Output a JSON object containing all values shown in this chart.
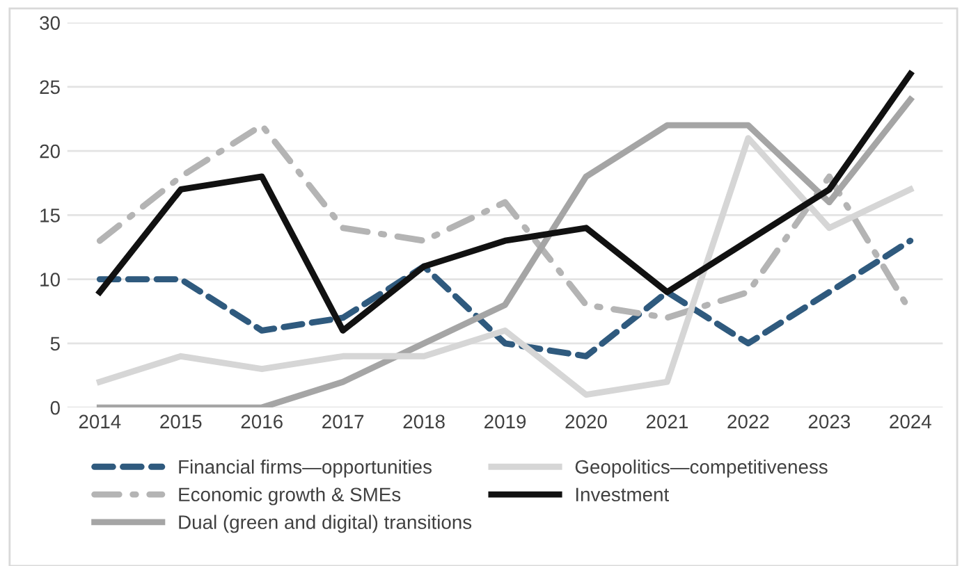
{
  "chart_data": {
    "type": "line",
    "categories": [
      "2014",
      "2015",
      "2016",
      "2017",
      "2018",
      "2019",
      "2020",
      "2021",
      "2022",
      "2023",
      "2024"
    ],
    "series": [
      {
        "name": "Financial firms—opportunities",
        "color": "#2f5a7e",
        "line_style": "dashed",
        "values": [
          10,
          10,
          6,
          7,
          11,
          5,
          4,
          9,
          5,
          9,
          13
        ]
      },
      {
        "name": "Economic growth & SMEs",
        "color": "#b4b4b4",
        "line_style": "dashdot",
        "values": [
          13,
          18,
          22,
          14,
          13,
          16,
          8,
          7,
          9,
          18,
          7.5
        ]
      },
      {
        "name": "Dual (green and digital) transitions",
        "color": "#a5a5a5",
        "line_style": "solid",
        "values": [
          0,
          0,
          0,
          2,
          5,
          8,
          18,
          22,
          22,
          16,
          24
        ]
      },
      {
        "name": "Geopolitics—competitiveness",
        "color": "#d6d6d6",
        "line_style": "solid",
        "values": [
          2,
          4,
          3,
          4,
          4,
          6,
          1,
          2,
          21,
          14,
          17
        ]
      },
      {
        "name": "Investment",
        "color": "#111111",
        "line_style": "solid",
        "values": [
          9,
          17,
          18,
          6,
          11,
          13,
          14,
          9,
          13,
          17,
          26
        ]
      }
    ],
    "ylim": [
      0,
      30
    ],
    "yticks": [
      0,
      5,
      10,
      15,
      20,
      25,
      30
    ],
    "grid": "y",
    "legend": "bottom"
  }
}
